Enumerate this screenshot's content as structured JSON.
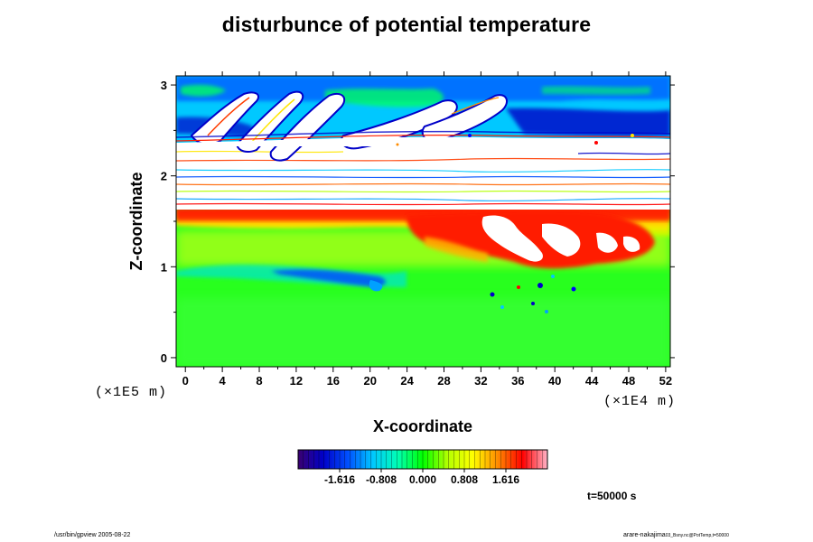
{
  "title": "disturbunce of potential temperature",
  "chart_data": {
    "type": "heatmap",
    "title": "disturbunce of potential temperature",
    "xlabel": "X-coordinate",
    "ylabel": "Z-coordinate",
    "x_unit": "(×1E4 m)",
    "y_unit": "(×1E5 m)",
    "xlim": [
      -1,
      52.5
    ],
    "ylim": [
      -0.1,
      3.1
    ],
    "x_ticks": [
      0,
      4,
      8,
      12,
      16,
      20,
      24,
      28,
      32,
      36,
      40,
      44,
      48,
      52
    ],
    "y_ticks": [
      0,
      1,
      2,
      3
    ],
    "colorbar": {
      "ticks": [
        "-1.616",
        "-0.808",
        "0.000",
        "0.808",
        "1.616"
      ],
      "tick_values": [
        -1.616,
        -0.808,
        0.0,
        0.808,
        1.616
      ],
      "range": [
        -2.424,
        2.424
      ],
      "colors": [
        "#3a0070",
        "#0000c8",
        "#0050ff",
        "#00c8ff",
        "#00ffb4",
        "#00ff00",
        "#b4ff00",
        "#ffff00",
        "#ff8c00",
        "#ff0000",
        "#ffb4c8"
      ]
    },
    "colors": {
      "upper_negative": "#0000c8",
      "saturated": "#ffffff",
      "inversion_layer": "#ff1e00",
      "mid_layer": "#aaff00",
      "background": "#28ff1e"
    }
  },
  "time_label": "t=50000 s",
  "footer": {
    "left": "/usr/bin/gpview 2005-08-22",
    "right_main": "arare-nakajima",
    "right_sub": "03_Bsny.nc@PotTemp,t=50000"
  }
}
